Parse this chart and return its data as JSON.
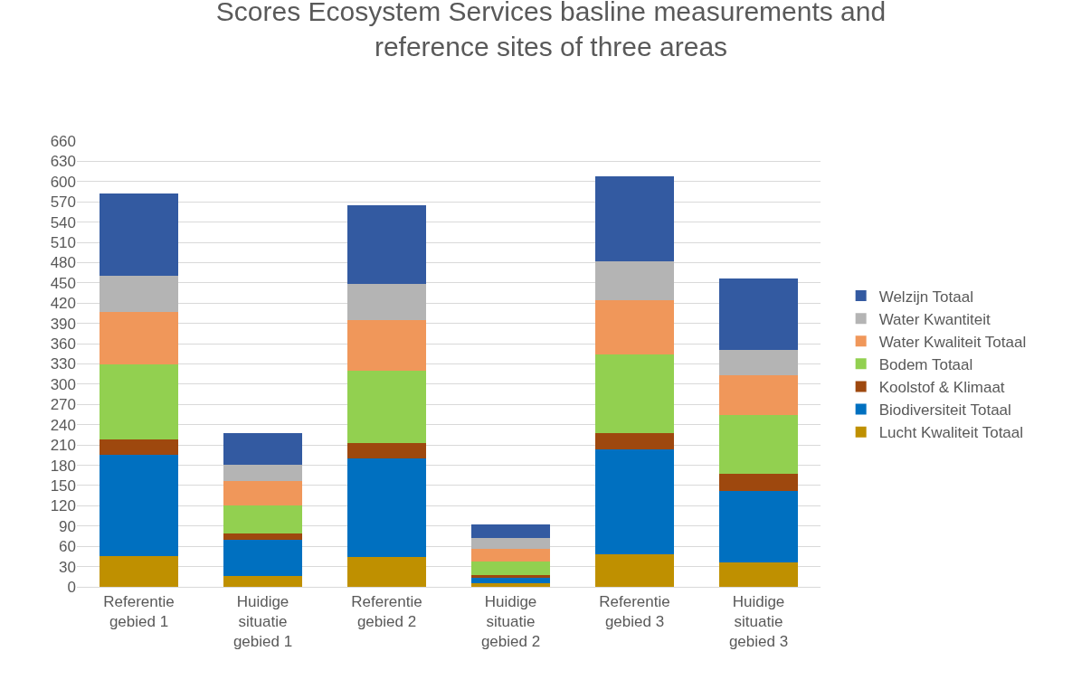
{
  "chart_data": {
    "type": "bar",
    "stacked": true,
    "title": "Scores Ecosystem Services basline measurements and reference sites of three areas",
    "categories": [
      "Referentie gebied 1",
      "Huidige situatie gebied 1",
      "Referentie gebied 2",
      "Huidige situatie gebied 2",
      "Referentie gebied 3",
      "Huidige situatie gebied 3"
    ],
    "series": [
      {
        "name": "Lucht Kwaliteit Totaal",
        "color": "#bf9000",
        "values": [
          45,
          16,
          44,
          5,
          48,
          36
        ]
      },
      {
        "name": "Biodiversiteit Totaal",
        "color": "#0070c0",
        "values": [
          150,
          54,
          146,
          8,
          156,
          106
        ]
      },
      {
        "name": "Koolstof & Klimaat",
        "color": "#9e480e",
        "values": [
          23,
          9,
          23,
          4,
          24,
          25
        ]
      },
      {
        "name": "Bodem Totaal",
        "color": "#92d050",
        "values": [
          111,
          42,
          107,
          21,
          116,
          88
        ]
      },
      {
        "name": "Water Kwaliteit Totaal",
        "color": "#f0975a",
        "values": [
          78,
          35,
          75,
          18,
          81,
          58
        ]
      },
      {
        "name": "Water Kwantiteit",
        "color": "#b4b4b4",
        "values": [
          54,
          25,
          53,
          16,
          57,
          38
        ]
      },
      {
        "name": "Welzijn Totaal",
        "color": "#335aa1",
        "values": [
          121,
          46,
          117,
          21,
          126,
          106
        ]
      }
    ],
    "ylim": [
      0,
      660
    ],
    "yticks": [
      0,
      30,
      60,
      90,
      120,
      150,
      180,
      210,
      240,
      270,
      300,
      330,
      360,
      390,
      420,
      450,
      480,
      510,
      540,
      570,
      600,
      630,
      660
    ],
    "grid": "y",
    "legend": "right"
  }
}
